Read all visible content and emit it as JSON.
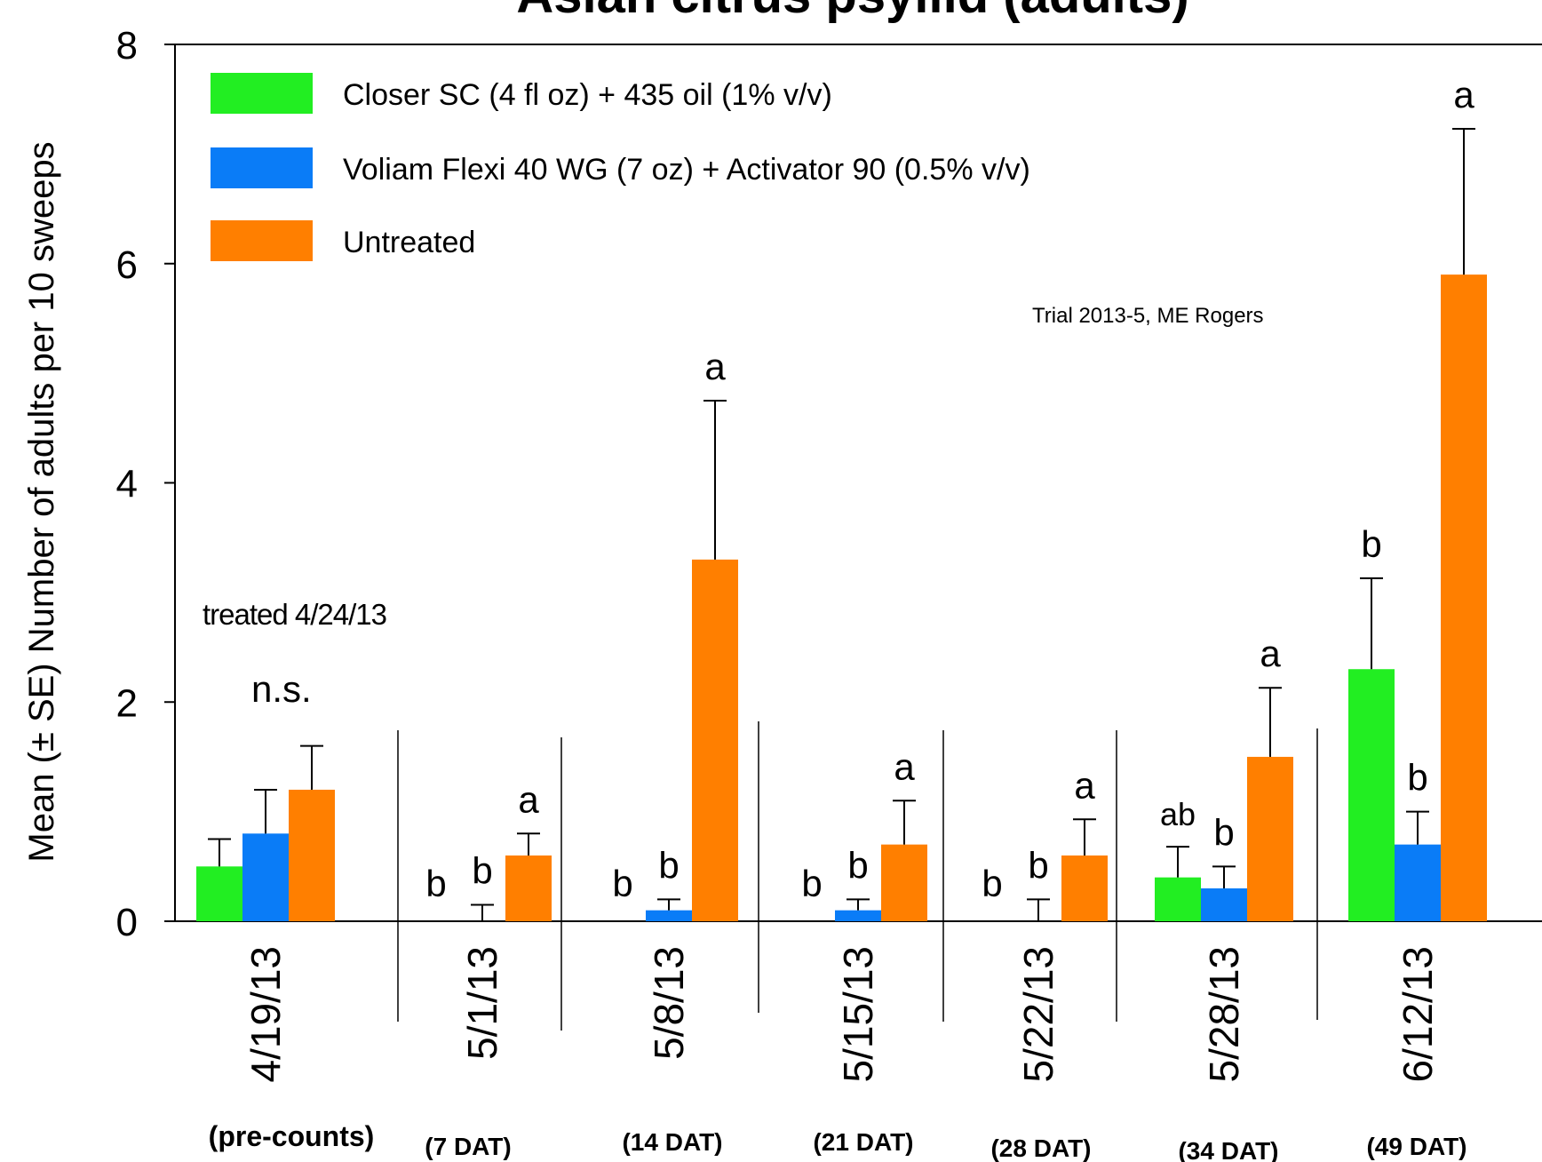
{
  "chart_data": {
    "type": "bar",
    "title": "Asian citrus psyllid (adults)",
    "ylabel": "Mean (± SE) Number of adults per 10 sweeps",
    "xlabel": "",
    "ylim": [
      0,
      8
    ],
    "yticks": [
      "0",
      "2",
      "4",
      "6",
      "8"
    ],
    "categories": [
      "4/19/13",
      "5/1/13",
      "5/8/13",
      "5/15/13",
      "5/22/13",
      "5/28/13",
      "6/12/13"
    ],
    "category_sublabels": [
      "(pre-counts)",
      "(7 DAT)",
      "(14 DAT)",
      "(21 DAT)",
      "(28 DAT)",
      "(34 DAT)",
      "(49 DAT)"
    ],
    "series": [
      {
        "name": "Closer SC (4 fl oz) + 435 oil (1% v/v)",
        "color": "#22ee22",
        "values": [
          0.5,
          0,
          0,
          0,
          0,
          0.4,
          2.3
        ],
        "se": [
          0.25,
          0,
          0,
          0,
          0,
          0.28,
          0.83
        ],
        "letters": [
          "",
          "b",
          "b",
          "b",
          "b",
          "ab",
          "b"
        ]
      },
      {
        "name": "Voliam Flexi 40 WG (7 oz) + Activator 90 (0.5% v/v)",
        "color": "#0a7cf7",
        "values": [
          0.8,
          0,
          0.1,
          0.1,
          0,
          0.3,
          0.7
        ],
        "se": [
          0.4,
          0.15,
          0.1,
          0.1,
          0.2,
          0.2,
          0.3
        ],
        "letters": [
          "",
          "b",
          "b",
          "b",
          "b",
          "b",
          "b"
        ]
      },
      {
        "name": "Untreated",
        "color": "#ff7f00",
        "values": [
          1.2,
          0.6,
          3.3,
          0.7,
          0.6,
          1.5,
          5.9
        ],
        "se": [
          0.4,
          0.2,
          1.45,
          0.4,
          0.33,
          0.63,
          1.33
        ],
        "letters": [
          "",
          "a",
          "a",
          "a",
          "a",
          "a",
          "a"
        ]
      }
    ],
    "annotations": {
      "trial": "Trial 2013-5, ME Rogers",
      "treated": "treated 4/24/13",
      "ns": "n.s."
    },
    "legend_position": "top-left",
    "grid": false
  }
}
